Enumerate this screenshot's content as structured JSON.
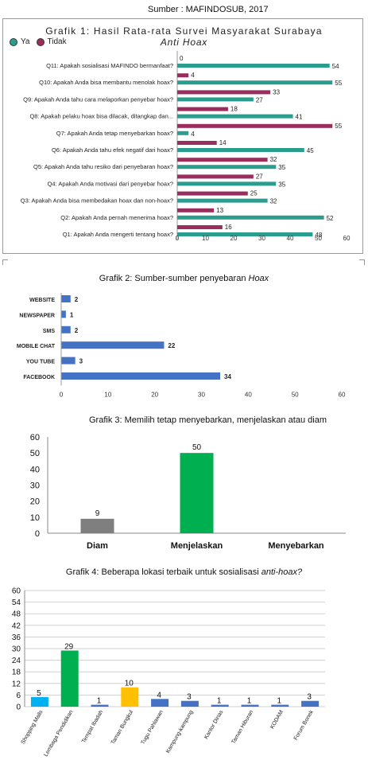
{
  "source_text": "Sumber : MAFINDOSUB, 2017",
  "chart_data": [
    {
      "type": "bar",
      "orientation": "horizontal",
      "title": "Grafik 1: Hasil Rata-rata Survei Masyarakat Surabaya",
      "subtitle": "Anti Hoax",
      "legend_position": "top-left",
      "categories": [
        "Q11: Apakah sosialisasi MAFINDO bermanfaat?",
        "Q10: Apakah Anda bisa membantu menolak hoax?",
        "Q9: Apakah Anda tahu cara melaporkan penyebar hoax?",
        "Q8: Apakah pelaku hoax bisa dilacak, ditangkap dan...",
        "Q7: Apakah Anda tetap menyebarkan hoax?",
        "Q6: Apakah Anda tahu efek negatif dari hoax?",
        "Q5: Apakah Anda tahu resiko dari penyebaran hoax?",
        "Q4: Apakah Anda motivasi dari penyebar hoax?",
        "Q3: Apakah Anda bisa membedakan hoax dan non-hoax?",
        "Q2: Apakah Anda pernah menerima hoax?",
        "Q1: Apakah Anda mengerti tentang hoax?"
      ],
      "series": [
        {
          "name": "Ya",
          "color": "#2a9d8f",
          "values": [
            54,
            55,
            27,
            41,
            4,
            45,
            35,
            35,
            32,
            52,
            48
          ]
        },
        {
          "name": "Tidak",
          "color": "#9b2d5c",
          "values": [
            0,
            4,
            33,
            18,
            55,
            14,
            32,
            27,
            25,
            13,
            16
          ]
        }
      ],
      "xlim": [
        0,
        60
      ],
      "xticks": [
        0,
        10,
        20,
        30,
        40,
        50,
        60
      ],
      "grid": false
    },
    {
      "type": "bar",
      "orientation": "horizontal",
      "title": "Grafik 2:  Sumber-sumber penyebaran ",
      "title_italic": "Hoax",
      "categories": [
        "WEBSITE",
        "NEWSPAPER",
        "SMS",
        "MOBILE CHAT",
        "YOU TUBE",
        "FACEBOOK"
      ],
      "values": [
        2,
        1,
        2,
        22,
        3,
        34
      ],
      "color": "#4472c4",
      "xlim": [
        0,
        60
      ],
      "xticks": [
        0,
        10,
        20,
        30,
        40,
        50,
        60
      ],
      "grid": false
    },
    {
      "type": "bar",
      "title": "Grafik 3:  Memilih tetap menyebarkan, menjelaskan atau diam",
      "categories": [
        "Diam",
        "Menjelaskan",
        "Menyebarkan"
      ],
      "values": [
        9,
        50,
        0
      ],
      "value_labels": [
        "9",
        "50",
        ""
      ],
      "colors": [
        "#7f7f7f",
        "#00b050",
        "#00b050"
      ],
      "ylim": [
        0,
        60
      ],
      "yticks": [
        0,
        10,
        20,
        30,
        40,
        50,
        60
      ],
      "grid": false
    },
    {
      "type": "bar",
      "title": "Grafik 4:  Beberapa lokasi terbaik untuk sosialisasi ",
      "title_italic": "anti-hoax?",
      "categories": [
        "Shopping Malls",
        "Lembaga Pendidikan",
        "Tempat Ibadah",
        "Taman  Bungkul",
        "Tugu Pahlawan",
        "Kampung-kampung",
        "Kantor Dinas",
        "Taman Hiburan",
        "KODAM",
        "Forum Bonek"
      ],
      "values": [
        5,
        29,
        1,
        10,
        4,
        3,
        1,
        1,
        1,
        3
      ],
      "colors": [
        "#00b0f0",
        "#00b050",
        "#4472c4",
        "#ffc000",
        "#4472c4",
        "#4472c4",
        "#4472c4",
        "#4472c4",
        "#4472c4",
        "#4472c4"
      ],
      "ylim": [
        0,
        60
      ],
      "yticks": [
        0,
        6,
        12,
        18,
        24,
        30,
        36,
        42,
        48,
        54,
        60
      ],
      "grid": true
    }
  ]
}
